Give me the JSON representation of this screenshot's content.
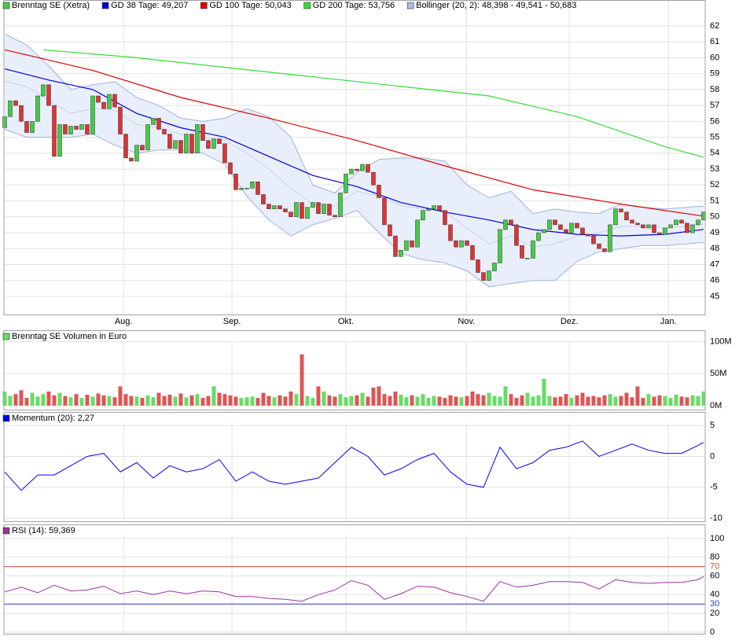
{
  "chart_data": [
    {
      "type": "candlestick",
      "xlim": [
        -0.14,
        127.29
      ],
      "xticks": [
        {
          "value": 21.6,
          "label": "Aug."
        },
        {
          "value": 41.3,
          "label": "Sep."
        },
        {
          "value": 62,
          "label": "Okt."
        },
        {
          "value": 83.9,
          "label": "Nov."
        },
        {
          "value": 102.6,
          "label": "Dez."
        },
        {
          "value": 120.6,
          "label": "Jan."
        }
      ],
      "ylim": [
        43.86,
        63.63
      ],
      "yticks": [
        45,
        46,
        47,
        48,
        49,
        50,
        51,
        52,
        53,
        54,
        55,
        56,
        57,
        58,
        59,
        60,
        61,
        62
      ],
      "grid": true,
      "series": [
        {
          "name": "Brenntag SE (Xetra)",
          "color": "#44cc44",
          "down_color": "#dd3333",
          "open": [
            55.6,
            56.3,
            57.3,
            57.0,
            56.0,
            55.3,
            56.0,
            57.6,
            58.3,
            57.0,
            53.8,
            55.8,
            55.2,
            55.7,
            55.5,
            55.8,
            55.2,
            57.6,
            57.2,
            56.8,
            57.7,
            56.9,
            55.2,
            53.7,
            53.5,
            54.5,
            54.2,
            55.8,
            56.2,
            55.5,
            55.2,
            54.3,
            54.8,
            54.0,
            55.2,
            54.0,
            55.8,
            54.8,
            54.3,
            54.9,
            54.6,
            53.4,
            52.7,
            51.7,
            51.8,
            51.8,
            52.2,
            51.4,
            50.8,
            50.5,
            50.7,
            50.5,
            50.3,
            50.0,
            50.9,
            49.9,
            50.6,
            50.9,
            50.2,
            50.8,
            50.1,
            50.0,
            51.5,
            52.7,
            53.0,
            52.9,
            53.3,
            52.8,
            52.0,
            51.2,
            49.5,
            48.8,
            47.5,
            47.9,
            48.5,
            48.1,
            49.8,
            50.4,
            50.5,
            50.7,
            50.4,
            49.5,
            48.5,
            48.1,
            48.5,
            48.2,
            47.3,
            46.5,
            46.0,
            46.6,
            47.1,
            49.2,
            49.8,
            49.5,
            48.2,
            47.4,
            47.4,
            48.5,
            49.0,
            49.2,
            49.8,
            49.5,
            49.2,
            49.0,
            49.6,
            49.3,
            48.9,
            48.8,
            48.3,
            48.0,
            47.8,
            49.5,
            50.5,
            50.3,
            49.8,
            49.6,
            49.5,
            49.3,
            49.5,
            49.0,
            48.9,
            49.3,
            49.5,
            49.8,
            49.6,
            49.0,
            49.5,
            49.8
          ],
          "close": [
            56.3,
            57.3,
            57.0,
            56.0,
            55.3,
            56.0,
            57.6,
            58.3,
            57.0,
            53.8,
            55.8,
            55.2,
            55.7,
            55.5,
            55.8,
            55.2,
            57.6,
            57.2,
            56.8,
            57.7,
            56.9,
            55.2,
            53.7,
            53.5,
            54.5,
            54.2,
            55.8,
            56.2,
            55.5,
            55.2,
            54.3,
            54.8,
            54.0,
            55.2,
            54.0,
            55.8,
            54.8,
            54.3,
            54.9,
            54.6,
            53.4,
            52.7,
            51.7,
            51.8,
            51.8,
            52.2,
            51.4,
            50.8,
            50.5,
            50.7,
            50.5,
            50.3,
            50.0,
            50.9,
            49.9,
            50.6,
            50.9,
            50.2,
            50.8,
            50.1,
            50.0,
            51.5,
            52.7,
            53.0,
            52.9,
            53.3,
            52.8,
            52.0,
            51.2,
            49.5,
            48.8,
            47.5,
            47.9,
            48.5,
            48.1,
            49.8,
            50.4,
            50.5,
            50.7,
            50.4,
            49.5,
            48.5,
            48.1,
            48.5,
            48.2,
            47.3,
            46.5,
            46.0,
            46.6,
            47.1,
            49.2,
            49.8,
            49.5,
            48.2,
            47.4,
            47.4,
            48.5,
            49.0,
            49.2,
            49.8,
            49.5,
            49.2,
            49.0,
            49.6,
            49.3,
            48.9,
            48.8,
            48.3,
            48.0,
            47.8,
            49.5,
            50.5,
            50.3,
            49.8,
            49.6,
            49.5,
            49.3,
            49.5,
            49.0,
            48.9,
            49.3,
            49.5,
            49.8,
            49.6,
            49.0,
            49.5,
            49.8,
            50.3
          ]
        },
        {
          "name": "GD 38 Tage: 49,207",
          "color": "#0000cc",
          "x": [
            0,
            8,
            16,
            24,
            32,
            40,
            48,
            56,
            64,
            72,
            80,
            88,
            96,
            104,
            112,
            120,
            127
          ],
          "values": [
            59.3,
            58.6,
            58.0,
            56.5,
            55.6,
            55.0,
            53.8,
            52.6,
            51.9,
            50.9,
            50.3,
            49.8,
            49.2,
            48.9,
            48.8,
            48.9,
            49.207
          ]
        },
        {
          "name": "GD 100 Tage: 50,043",
          "color": "#dd0000",
          "x": [
            0,
            16,
            32,
            48,
            64,
            80,
            96,
            112,
            127
          ],
          "values": [
            60.5,
            59.2,
            57.5,
            56.2,
            54.8,
            53.2,
            51.7,
            50.8,
            50.043
          ]
        },
        {
          "name": "GD 200 Tage: 53,756",
          "color": "#33dd33",
          "x": [
            7,
            24,
            40,
            56,
            72,
            88,
            104,
            120,
            127
          ],
          "values": [
            60.5,
            60.0,
            59.4,
            58.8,
            58.2,
            57.6,
            56.3,
            54.4,
            53.756
          ]
        },
        {
          "name": "Bollinger (20, 2): 48,398 - 49,541 - 50,683",
          "color": "#aabbee",
          "x": [
            0,
            4,
            8,
            12,
            16,
            20,
            24,
            28,
            32,
            36,
            40,
            44,
            48,
            52,
            56,
            60,
            64,
            68,
            72,
            76,
            80,
            84,
            88,
            92,
            96,
            100,
            104,
            108,
            112,
            116,
            120,
            124,
            127
          ],
          "upper": [
            61.5,
            60.8,
            59.5,
            58.0,
            58.3,
            58.5,
            57.5,
            57.0,
            56.2,
            56.0,
            56.2,
            56.8,
            56.3,
            55.0,
            52.0,
            51.5,
            52.8,
            53.6,
            53.7,
            53.7,
            53.5,
            52.0,
            51.2,
            51.6,
            50.2,
            50.5,
            50.3,
            50.2,
            50.8,
            50.6,
            50.5,
            50.6,
            50.683
          ],
          "middle": [
            58.5,
            58.2,
            57.3,
            56.5,
            56.8,
            56.7,
            55.8,
            55.6,
            55.2,
            55.0,
            54.8,
            54.0,
            53.0,
            51.8,
            50.8,
            50.7,
            51.6,
            51.3,
            50.7,
            50.5,
            50.3,
            49.3,
            48.3,
            48.8,
            48.1,
            48.3,
            48.8,
            49.0,
            49.4,
            49.4,
            49.3,
            49.4,
            49.541
          ],
          "lower": [
            55.5,
            55.0,
            55.0,
            55.0,
            55.2,
            54.5,
            54.0,
            54.2,
            54.2,
            54.0,
            53.3,
            51.3,
            49.8,
            48.8,
            49.5,
            49.9,
            50.4,
            49.0,
            47.7,
            47.3,
            47.1,
            46.6,
            45.6,
            45.8,
            46.0,
            46.0,
            47.2,
            47.8,
            48.0,
            48.2,
            48.2,
            48.3,
            48.398
          ]
        }
      ]
    },
    {
      "type": "bar",
      "xlim": [
        -0.14,
        127.29
      ],
      "ylim": [
        -6.3,
        117.7
      ],
      "yticks": [
        {
          "value": 0,
          "label": "0M"
        },
        {
          "value": 50,
          "label": "50M"
        },
        {
          "value": 100,
          "label": "100M"
        }
      ],
      "grid": true,
      "series": [
        {
          "name": "Brenntag SE Volumen in Euro",
          "color": "#66dd66",
          "down_color": "#dd5555",
          "values": [
            22,
            15,
            18,
            24,
            12,
            20,
            14,
            18,
            22,
            16,
            20,
            15,
            13,
            18,
            12,
            17,
            14,
            19,
            16,
            15,
            13,
            30,
            18,
            15,
            14,
            12,
            16,
            13,
            20,
            15,
            17,
            14,
            19,
            13,
            16,
            18,
            12,
            15,
            30,
            20,
            18,
            16,
            14,
            12,
            13,
            14,
            12,
            20,
            15,
            13,
            16,
            14,
            22,
            18,
            80,
            15,
            12,
            30,
            22,
            16,
            14,
            18,
            13,
            15,
            16,
            20,
            14,
            28,
            30,
            18,
            15,
            22,
            17,
            13,
            16,
            14,
            18,
            12,
            15,
            14,
            12,
            16,
            14,
            13,
            15,
            22,
            18,
            16,
            20,
            15,
            14,
            30,
            18,
            12,
            16,
            20,
            14,
            16,
            42,
            15,
            13,
            14,
            18,
            12,
            16,
            20,
            14,
            15,
            13,
            16,
            18,
            14,
            15,
            20,
            13,
            30,
            12,
            18,
            14,
            16,
            15,
            12,
            17,
            14,
            13,
            16,
            15,
            22
          ]
        }
      ]
    },
    {
      "type": "line",
      "xlim": [
        -0.14,
        127.29
      ],
      "ylim": [
        -10.5,
        7.2
      ],
      "yticks": [
        -10,
        -5,
        0,
        5
      ],
      "grid": true,
      "series": [
        {
          "name": "Momentum (20): 2,27",
          "color": "#0000ee",
          "x": [
            0,
            3,
            6,
            9,
            12,
            15,
            18,
            21,
            24,
            27,
            30,
            33,
            36,
            39,
            42,
            45,
            48,
            51,
            54,
            57,
            60,
            63,
            66,
            69,
            72,
            75,
            78,
            81,
            84,
            87,
            90,
            93,
            96,
            99,
            102,
            105,
            108,
            111,
            114,
            117,
            120,
            123,
            126,
            127
          ],
          "values": [
            -2.5,
            -5.5,
            -3,
            -3,
            -1.5,
            0,
            0.5,
            -2.5,
            -1,
            -3.5,
            -1.5,
            -2.5,
            -2,
            -0.5,
            -4,
            -2.5,
            -4,
            -4.5,
            -4,
            -3.5,
            -1,
            1.5,
            0,
            -3,
            -2,
            -0.5,
            0.5,
            -2.5,
            -4.5,
            -5,
            1.5,
            -2,
            -1,
            1,
            1.5,
            2.5,
            0,
            1,
            2,
            1,
            0.5,
            0.5,
            1.8,
            2.27
          ]
        }
      ]
    },
    {
      "type": "line",
      "xlim": [
        -0.14,
        127.29
      ],
      "ylim": [
        -1.7,
        115
      ],
      "yticks": [
        0,
        20,
        30,
        40,
        60,
        70,
        80,
        100
      ],
      "grid": true,
      "ref_lines": [
        {
          "value": 70,
          "color": "#dd4444"
        },
        {
          "value": 30,
          "color": "#3333cc"
        }
      ],
      "series": [
        {
          "name": "RSI (14): 59,369",
          "color": "#993399",
          "x": [
            0,
            3,
            6,
            9,
            12,
            15,
            18,
            21,
            24,
            27,
            30,
            33,
            36,
            39,
            42,
            45,
            48,
            51,
            54,
            57,
            60,
            63,
            66,
            69,
            72,
            75,
            78,
            81,
            84,
            87,
            90,
            93,
            96,
            99,
            102,
            105,
            108,
            111,
            114,
            117,
            120,
            123,
            126,
            127
          ],
          "values": [
            43,
            48,
            42,
            50,
            44,
            45,
            49,
            41,
            44,
            40,
            44,
            41,
            44,
            43,
            38,
            38,
            36,
            35,
            33,
            40,
            45,
            55,
            50,
            35,
            41,
            49,
            48,
            42,
            38,
            33,
            54,
            48,
            50,
            54,
            54,
            53,
            46,
            56,
            53,
            52,
            53,
            53,
            56,
            59.369
          ]
        }
      ]
    }
  ]
}
